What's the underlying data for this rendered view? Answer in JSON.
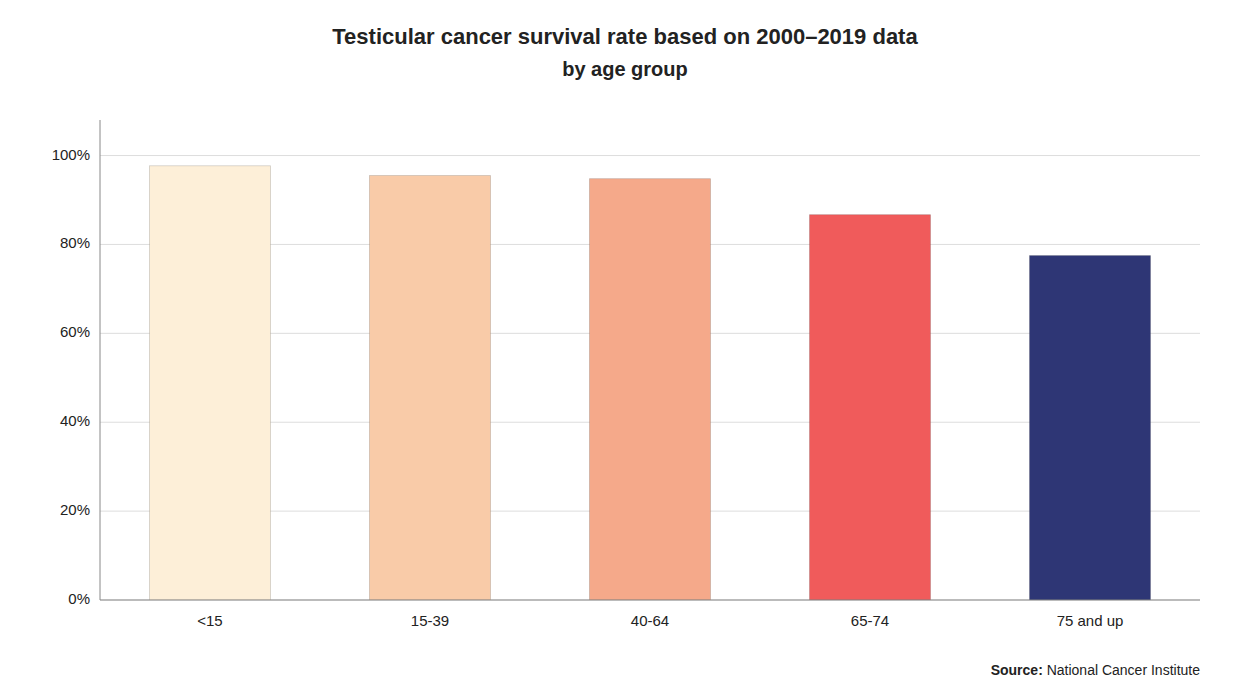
{
  "chart_data": {
    "type": "bar",
    "title": "Testicular cancer survival rate based on 2000–2019 data",
    "subtitle": "by age group",
    "categories": [
      "<15",
      "15-39",
      "40-64",
      "65-74",
      "75 and up"
    ],
    "values": [
      0.977,
      0.955,
      0.948,
      0.867,
      0.775
    ],
    "colors": [
      "#fdefd8",
      "#f9cba8",
      "#f5a98a",
      "#f05b5b",
      "#2e3675"
    ],
    "ylim": [
      0,
      1.08
    ],
    "yticks": [
      {
        "value": 0.0,
        "label": "0%"
      },
      {
        "value": 0.2,
        "label": "20%"
      },
      {
        "value": 0.4,
        "label": "40%"
      },
      {
        "value": 0.6,
        "label": "60%"
      },
      {
        "value": 0.8,
        "label": "80%"
      },
      {
        "value": 1.0,
        "label": "100%"
      }
    ],
    "grid": true,
    "annotations": [
      "Source:",
      "National Cancer Institute"
    ]
  }
}
